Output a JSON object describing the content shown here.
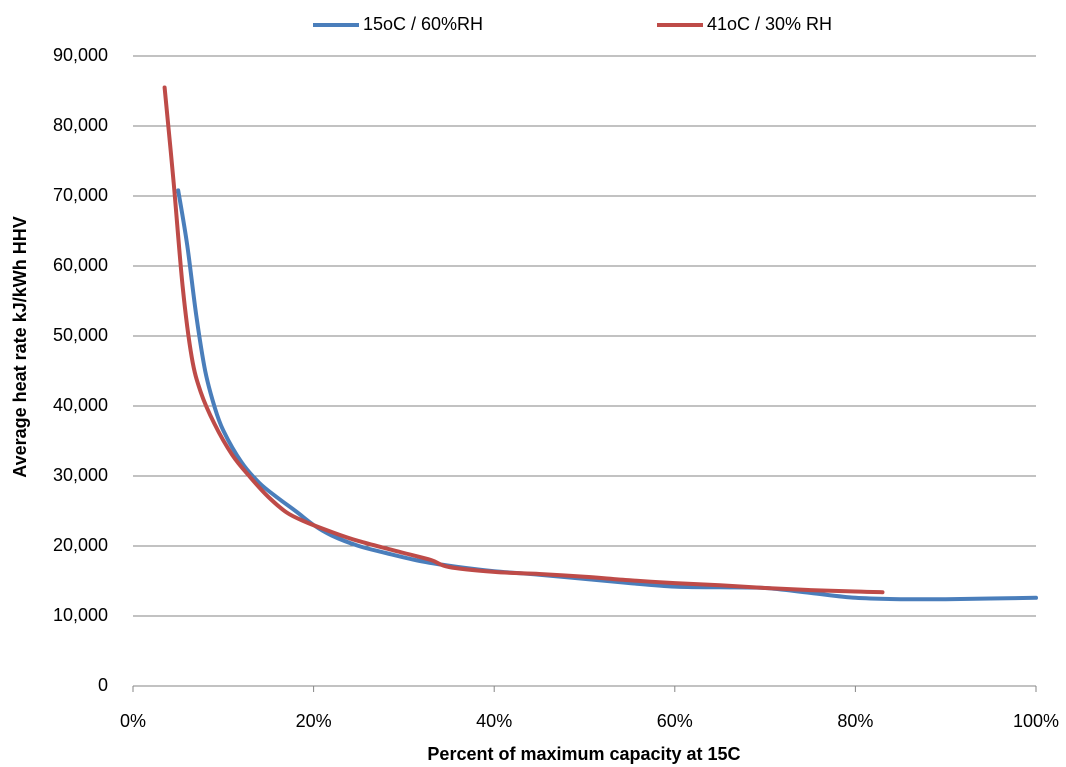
{
  "chart_data": {
    "type": "line",
    "xlabel": "Percent of maximum capacity at 15C",
    "ylabel": "Average heat rate kJ/kWh HHV",
    "xlim": [
      0,
      100
    ],
    "ylim": [
      0,
      90000
    ],
    "x_ticks": [
      0,
      20,
      40,
      60,
      80,
      100
    ],
    "x_tick_labels": [
      "0%",
      "20%",
      "40%",
      "60%",
      "80%",
      "100%"
    ],
    "y_ticks": [
      0,
      10000,
      20000,
      30000,
      40000,
      50000,
      60000,
      70000,
      80000,
      90000
    ],
    "y_tick_labels": [
      "0",
      "10,000",
      "20,000",
      "30,000",
      "40,000",
      "50,000",
      "60,000",
      "70,000",
      "80,000",
      "90,000"
    ],
    "grid": "horizontal",
    "legend_position": "top",
    "series": [
      {
        "name": "15oC / 60%RH",
        "color": "#4a7ebb",
        "x": [
          5,
          6,
          7,
          8,
          9,
          10,
          12,
          14,
          16,
          18,
          20,
          22,
          25,
          28,
          32,
          36,
          40,
          45,
          50,
          55,
          60,
          65,
          70,
          75,
          80,
          85,
          90,
          95,
          100
        ],
        "y": [
          70800,
          63000,
          53000,
          45000,
          40000,
          36500,
          32000,
          29000,
          26900,
          25000,
          23000,
          21500,
          20000,
          19000,
          17800,
          17000,
          16400,
          15900,
          15300,
          14700,
          14200,
          14100,
          14000,
          13300,
          12600,
          12400,
          12400,
          12500,
          12600
        ]
      },
      {
        "name": "41oC / 30% RH",
        "color": "#be4b48",
        "x": [
          3.5,
          4.5,
          5.5,
          6.5,
          7.5,
          9,
          11,
          13,
          15,
          17,
          19,
          22,
          25,
          30,
          33,
          35,
          40,
          45,
          50,
          55,
          60,
          65,
          70,
          75,
          80,
          83
        ],
        "y": [
          85500,
          72000,
          57000,
          47000,
          42000,
          37500,
          33000,
          29800,
          27000,
          24800,
          23500,
          22000,
          20700,
          19000,
          18000,
          17000,
          16300,
          16000,
          15600,
          15100,
          14700,
          14400,
          14000,
          13700,
          13500,
          13400
        ]
      }
    ]
  }
}
